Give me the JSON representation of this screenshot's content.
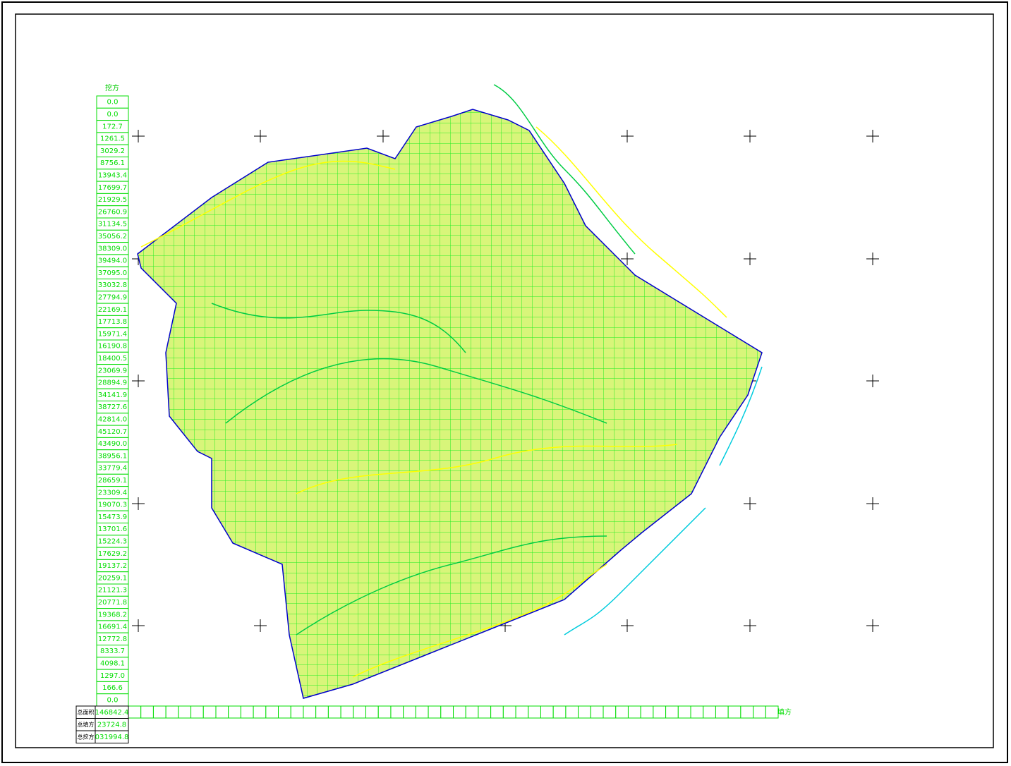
{
  "table": {
    "header": "挖方",
    "values": [
      "0.0",
      "0.0",
      "172.7",
      "1261.5",
      "3029.2",
      "8756.1",
      "13943.4",
      "17699.7",
      "21929.5",
      "26760.9",
      "31134.5",
      "35056.2",
      "38309.0",
      "39494.0",
      "37095.0",
      "33032.8",
      "27794.9",
      "22169.1",
      "17713.8",
      "15971.4",
      "16190.8",
      "18400.5",
      "23069.9",
      "28894.9",
      "34141.9",
      "38727.6",
      "42814.0",
      "45120.7",
      "43490.0",
      "38956.1",
      "33779.4",
      "28659.1",
      "23309.4",
      "19070.3",
      "15473.9",
      "13701.6",
      "15224.3",
      "17629.2",
      "19137.2",
      "20259.1",
      "21121.3",
      "20771.8",
      "19368.2",
      "16691.4",
      "12772.8",
      "8333.7",
      "4098.1",
      "1297.0",
      "166.6",
      "0.0"
    ],
    "row_header": "填方"
  },
  "summary": {
    "rows": [
      [
        "总面积",
        "146842.4"
      ],
      [
        "总填方",
        "23724.8"
      ],
      [
        "总挖方",
        "031994.8"
      ]
    ]
  }
}
